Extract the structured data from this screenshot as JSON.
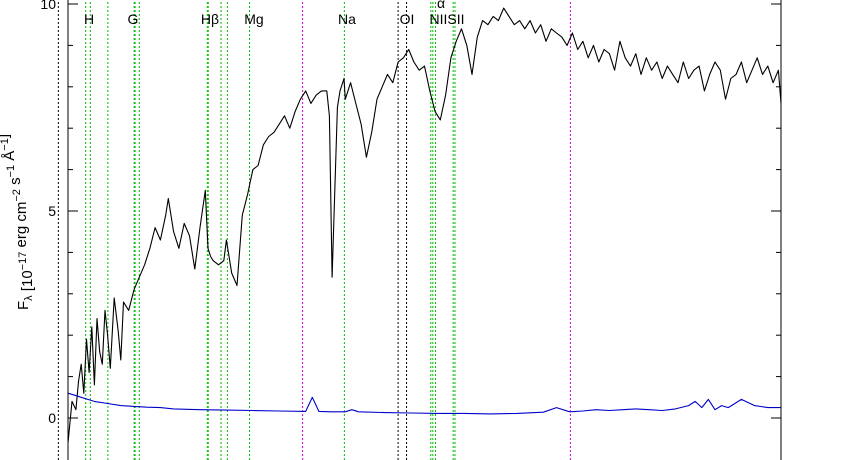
{
  "chart_data": {
    "type": "line",
    "title": "",
    "xlabel": "",
    "ylabel": "F_λ [10^-17 erg cm^-2 s^-1 Å^-1]",
    "ylim": [
      -1,
      10
    ],
    "xlim": [
      3800,
      9200
    ],
    "yticks": [
      0,
      5,
      10
    ],
    "ytick_labels": [
      "0",
      "5",
      "10"
    ],
    "grid": false,
    "legend": "none",
    "colors": {
      "flux": "#000000",
      "error": "#0000cc",
      "absorption_lines": "#00bb00",
      "sky_lines": "#cc00cc",
      "emission_lines": "#000000"
    },
    "series": [
      {
        "x": [
          3800,
          3830,
          3860,
          3880,
          3900,
          3920,
          3940,
          3960,
          3980,
          4000,
          4020,
          4040,
          4060,
          4080,
          4100,
          4120,
          4150,
          4180,
          4200,
          4220,
          4260,
          4300,
          4340,
          4380,
          4420,
          4460,
          4500,
          4540,
          4560,
          4600,
          4640,
          4680,
          4720,
          4760,
          4800,
          4840,
          4860,
          4880,
          4900,
          4940,
          4980,
          5000,
          5040,
          5080,
          5120,
          5160,
          5180,
          5200,
          5240,
          5280,
          5320,
          5360,
          5400,
          5440,
          5480,
          5520,
          5560,
          5600,
          5640,
          5680,
          5720,
          5760,
          5780,
          5800,
          5840,
          5860,
          5890,
          5900,
          5940,
          5980,
          6020,
          6060,
          6100,
          6140,
          6180,
          6220,
          6260,
          6300,
          6340,
          6380,
          6420,
          6460,
          6500,
          6540,
          6580,
          6620,
          6660,
          6700,
          6740,
          6780,
          6820,
          6860,
          6900,
          6940,
          6980,
          7020,
          7060,
          7100,
          7140,
          7180,
          7220,
          7260,
          7300,
          7340,
          7380,
          7420,
          7460,
          7500,
          7540,
          7580,
          7620,
          7660,
          7700,
          7740,
          7780,
          7820,
          7860,
          7900,
          7940,
          7980,
          8020,
          8060,
          8100,
          8140,
          8180,
          8220,
          8260,
          8300,
          8340,
          8380,
          8420,
          8460,
          8500,
          8540,
          8580,
          8620,
          8660,
          8700,
          8740,
          8780,
          8820,
          8860,
          8900,
          8940,
          8980,
          9020,
          9060,
          9100,
          9140,
          9180,
          9200
        ],
        "y": [
          -0.6,
          0.4,
          0.2,
          0.9,
          1.3,
          0.6,
          1.9,
          1.1,
          2.2,
          0.8,
          2.4,
          1.6,
          1.3,
          2.6,
          2.0,
          1.2,
          2.9,
          2.1,
          1.4,
          2.8,
          2.6,
          3.1,
          3.4,
          3.7,
          4.1,
          4.6,
          4.3,
          4.9,
          5.3,
          4.5,
          4.1,
          4.7,
          4.4,
          3.6,
          4.6,
          5.5,
          4.1,
          3.9,
          3.8,
          3.7,
          3.8,
          4.3,
          3.5,
          3.2,
          4.9,
          5.4,
          5.7,
          6.0,
          6.1,
          6.6,
          6.8,
          6.9,
          7.1,
          7.3,
          7.0,
          7.4,
          7.7,
          7.9,
          7.6,
          7.8,
          7.9,
          7.9,
          7.3,
          3.4,
          7.5,
          7.9,
          8.2,
          7.7,
          8.1,
          7.6,
          7.1,
          6.3,
          6.9,
          7.7,
          8.0,
          8.3,
          8.1,
          8.6,
          8.7,
          8.9,
          8.6,
          8.4,
          8.5,
          7.9,
          7.4,
          7.2,
          7.8,
          8.7,
          9.1,
          9.4,
          9.0,
          8.3,
          9.2,
          9.6,
          9.5,
          9.7,
          9.6,
          9.9,
          9.7,
          9.5,
          9.6,
          9.4,
          9.6,
          9.3,
          9.5,
          9.1,
          9.4,
          9.3,
          9.2,
          9.0,
          9.3,
          8.9,
          9.1,
          8.7,
          9.0,
          8.6,
          8.9,
          8.8,
          8.4,
          9.1,
          8.7,
          8.5,
          8.8,
          8.3,
          8.7,
          8.4,
          8.6,
          8.2,
          8.5,
          8.3,
          8.1,
          8.6,
          8.2,
          8.4,
          8.5,
          7.9,
          8.3,
          8.6,
          8.4,
          7.7,
          8.2,
          8.3,
          8.6,
          8.1,
          8.4,
          8.7,
          8.3,
          8.5,
          8.1,
          8.4,
          7.6
        ],
        "color": "black"
      },
      {
        "x": [
          3800,
          3850,
          3900,
          3950,
          4000,
          4100,
          4200,
          4300,
          4400,
          4500,
          4600,
          4800,
          5000,
          5200,
          5400,
          5600,
          5650,
          5700,
          5800,
          5900,
          5950,
          6000,
          6200,
          6400,
          6600,
          6800,
          7000,
          7200,
          7400,
          7500,
          7600,
          7700,
          7800,
          7900,
          8000,
          8100,
          8200,
          8300,
          8400,
          8500,
          8550,
          8600,
          8650,
          8700,
          8750,
          8800,
          8900,
          9000,
          9100,
          9200
        ],
        "y": [
          0.6,
          0.55,
          0.5,
          0.45,
          0.4,
          0.35,
          0.3,
          0.28,
          0.26,
          0.25,
          0.22,
          0.2,
          0.19,
          0.18,
          0.17,
          0.16,
          0.5,
          0.16,
          0.15,
          0.15,
          0.2,
          0.15,
          0.13,
          0.12,
          0.11,
          0.11,
          0.1,
          0.11,
          0.14,
          0.25,
          0.15,
          0.17,
          0.2,
          0.18,
          0.2,
          0.22,
          0.2,
          0.18,
          0.22,
          0.3,
          0.4,
          0.25,
          0.45,
          0.2,
          0.3,
          0.25,
          0.45,
          0.3,
          0.25,
          0.25
        ],
        "color": "blue"
      }
    ],
    "lines": {
      "absorption": [
        {
          "label": "",
          "x": 3934
        },
        {
          "label": "H",
          "x": 3969
        },
        {
          "label": "",
          "x": 4102
        },
        {
          "label": "",
          "x": 4301
        },
        {
          "label": "G",
          "x": 4308
        },
        {
          "label": "",
          "x": 4340
        },
        {
          "label": "",
          "x": 4855
        },
        {
          "label": "Hβ",
          "x": 4862
        },
        {
          "label": "",
          "x": 4959
        },
        {
          "label": "",
          "x": 5007
        },
        {
          "label": "Mg",
          "x": 5175
        },
        {
          "label": "Na",
          "x": 5893
        },
        {
          "label": "",
          "x": 6731
        },
        {
          "label": "",
          "x": 6717
        }
      ],
      "emission": [
        {
          "label": "",
          "x": 3727
        },
        {
          "label": "OI",
          "x": 6300
        },
        {
          "label": "",
          "x": 6364
        }
      ],
      "sky": [
        {
          "label": "",
          "x": 5577
        },
        {
          "label": "",
          "x": 7605
        }
      ],
      "nii_sii": [
        {
          "label": "NIISII",
          "x": 6583
        },
        {
          "label": "",
          "x": 6548
        },
        {
          "label": "α",
          "x": 6563
        }
      ]
    }
  }
}
